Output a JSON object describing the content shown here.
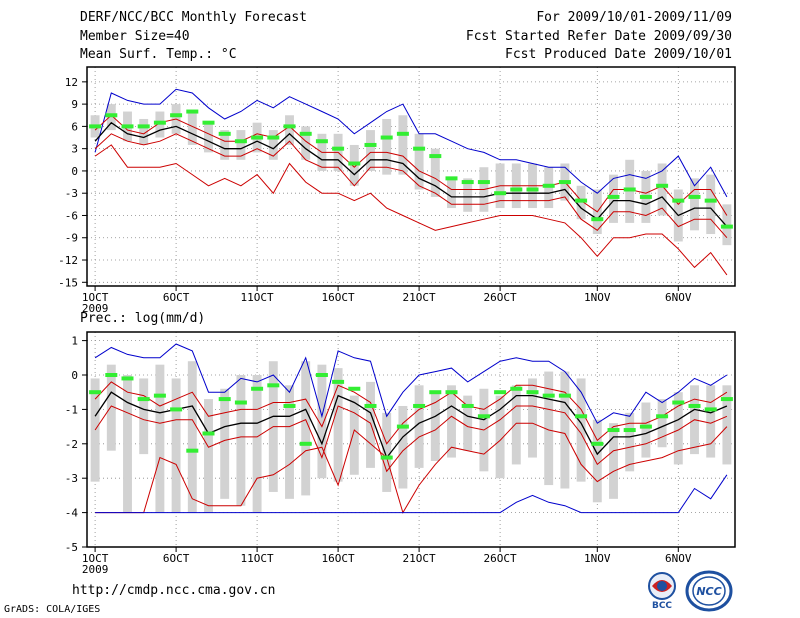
{
  "header": {
    "title": "DERF/NCC/BCC Monthly Forecast",
    "member_size": "Member Size=40",
    "variable": "Mean Surf. Temp.: °C",
    "period": "For 2009/10/01-2009/11/09",
    "fcst_started": "Fcst Started Refer Date 2009/09/30",
    "fcst_produced": "Fcst Produced Date 2009/10/01"
  },
  "footer": {
    "url": "http://cmdp.ncc.cma.gov.cn",
    "credit": "GrADS: COLA/IGES",
    "logo_left_text": "BCC",
    "logo_right_text": "NCC"
  },
  "colors": {
    "envelope": "#0000cc",
    "spread": "#cc0000",
    "mean": "#000000",
    "box": "#d2d2d2",
    "observed": "#33ee33"
  },
  "chart_data": [
    {
      "type": "line",
      "title": "Mean Surf. Temp.: °C",
      "x_ticks": [
        "1OCT",
        "6OCT",
        "11OCT",
        "16OCT",
        "21OCT",
        "26OCT",
        "1NOV",
        "6NOV"
      ],
      "x_tick_days": [
        1,
        6,
        11,
        16,
        21,
        26,
        32,
        37
      ],
      "x_sublabel": "2009",
      "x_range": [
        0.5,
        40.5
      ],
      "ylim": [
        -15.5,
        14
      ],
      "yticks": [
        12,
        9,
        6,
        3,
        0,
        -3,
        -6,
        -9,
        -12,
        -15
      ],
      "grid": true,
      "series": [
        {
          "name": "max",
          "values": [
            2.5,
            10.5,
            9.5,
            9,
            9,
            11,
            10.5,
            8.5,
            7,
            8,
            9.5,
            8.5,
            10,
            9,
            8,
            7,
            5,
            6.5,
            8,
            9,
            5,
            5,
            4,
            3,
            2.5,
            1.5,
            1.5,
            1,
            0.5,
            0.5,
            -1.5,
            -3,
            -1,
            -0.5,
            -1,
            0,
            2,
            -2,
            0.5,
            -3.5
          ]
        },
        {
          "name": "upper",
          "values": [
            5.5,
            7.5,
            5.5,
            5,
            6.5,
            7,
            6,
            5,
            4,
            4,
            5,
            4.5,
            6,
            4,
            2.5,
            2.5,
            0.5,
            2.5,
            2.5,
            2,
            0,
            -1,
            -2.5,
            -2.5,
            -2.5,
            -2,
            -2,
            -2,
            -2,
            -1.5,
            -4,
            -5.5,
            -2.5,
            -2.5,
            -3,
            -2,
            -4.5,
            -2.5,
            -2.5,
            -6
          ]
        },
        {
          "name": "mean",
          "values": [
            4,
            6.5,
            5,
            4.5,
            5.5,
            6,
            5,
            4,
            3,
            3,
            4,
            3,
            5,
            3,
            1.5,
            1.5,
            -0.5,
            1.5,
            1.5,
            1,
            -1,
            -2,
            -3.5,
            -3.5,
            -3.5,
            -3,
            -3,
            -3,
            -3,
            -2.5,
            -5,
            -6.5,
            -4,
            -4,
            -4.5,
            -3.5,
            -6,
            -5,
            -5,
            -7.5
          ]
        },
        {
          "name": "lower",
          "values": [
            3,
            5,
            4,
            3.5,
            4,
            5,
            4,
            3,
            2,
            2,
            3,
            2,
            4,
            1.5,
            0.5,
            0.5,
            -2,
            0.5,
            0.5,
            0,
            -2,
            -3,
            -4.5,
            -4.5,
            -4.5,
            -4,
            -4,
            -4,
            -4,
            -3.5,
            -6.5,
            -8,
            -5.5,
            -5.5,
            -6,
            -5,
            -7.5,
            -6.5,
            -6.5,
            -9
          ]
        },
        {
          "name": "min",
          "values": [
            2,
            3.5,
            0.5,
            0.5,
            0.5,
            1,
            -0.5,
            -2,
            -1,
            -2,
            -0.5,
            -3,
            1,
            -1.5,
            -3,
            -3,
            -4,
            -3,
            -5,
            -6,
            -7,
            -8,
            -7.5,
            -7,
            -6.5,
            -6,
            -6,
            -6,
            -6.5,
            -7,
            -9,
            -11.5,
            -9,
            -9,
            -8.5,
            -8.5,
            -10.5,
            -13,
            -11,
            -14
          ]
        }
      ],
      "boxes": [
        [
          4.5,
          7.5
        ],
        [
          5.5,
          9
        ],
        [
          4,
          8
        ],
        [
          3.5,
          7
        ],
        [
          4.5,
          8
        ],
        [
          5,
          9
        ],
        [
          3.5,
          8
        ],
        [
          2.5,
          6.5
        ],
        [
          1.5,
          5.5
        ],
        [
          1.5,
          5.5
        ],
        [
          2.5,
          6.5
        ],
        [
          1.5,
          5.5
        ],
        [
          3.5,
          7.5
        ],
        [
          1.5,
          6
        ],
        [
          0,
          5
        ],
        [
          0,
          5
        ],
        [
          -2,
          3.5
        ],
        [
          0,
          5.5
        ],
        [
          -0.5,
          7
        ],
        [
          -0.5,
          7.5
        ],
        [
          -2.5,
          5
        ],
        [
          -3.5,
          3
        ],
        [
          -5,
          -1
        ],
        [
          -5.5,
          -1
        ],
        [
          -5.5,
          0.5
        ],
        [
          -5,
          1
        ],
        [
          -5,
          1
        ],
        [
          -5,
          1
        ],
        [
          -5,
          0.5
        ],
        [
          -4,
          1
        ],
        [
          -6.5,
          -2
        ],
        [
          -8.5,
          -2.5
        ],
        [
          -7,
          -0.5
        ],
        [
          -7,
          1.5
        ],
        [
          -7,
          0
        ],
        [
          -6,
          1
        ],
        [
          -9.5,
          -2.5
        ],
        [
          -8,
          -1
        ],
        [
          -8.5,
          -0.5
        ],
        [
          -10,
          -4.5
        ]
      ],
      "observed": [
        6,
        7.5,
        6,
        6,
        6.5,
        7.5,
        8,
        6.5,
        5,
        4,
        4.5,
        4.5,
        6,
        5,
        4,
        3,
        1,
        3.5,
        4.5,
        5,
        3,
        2,
        -1,
        -1.5,
        -1.5,
        -3,
        -2.5,
        -2.5,
        -2,
        -1.5,
        -4,
        -6.5,
        -3.5,
        -2.5,
        -3.5,
        -2,
        -4,
        -3.5,
        -4,
        -7.5
      ]
    },
    {
      "type": "line",
      "title": "Prec.: log(mm/d)",
      "x_ticks": [
        "1OCT",
        "6OCT",
        "11OCT",
        "16OCT",
        "21OCT",
        "26OCT",
        "1NOV",
        "6NOV"
      ],
      "x_tick_days": [
        1,
        6,
        11,
        16,
        21,
        26,
        32,
        37
      ],
      "x_sublabel": "2009",
      "x_range": [
        0.5,
        40.5
      ],
      "ylim": [
        -5,
        1.25
      ],
      "yticks": [
        1,
        0,
        -1,
        -2,
        -3,
        -4,
        -5
      ],
      "grid": true,
      "series": [
        {
          "name": "max",
          "values": [
            0.5,
            0.8,
            0.6,
            0.5,
            0.5,
            0.9,
            0.7,
            -0.5,
            -0.5,
            -0.1,
            -0.2,
            0,
            -0.5,
            0.5,
            -1.2,
            0.7,
            0.5,
            0.4,
            -1.2,
            -0.5,
            0,
            0.1,
            0.2,
            -0.2,
            0.1,
            0.4,
            0.5,
            0.4,
            0.4,
            0.1,
            -0.5,
            -1.4,
            -1.1,
            -1.2,
            -0.5,
            -0.8,
            -0.5,
            -0.1,
            -0.3,
            0
          ]
        },
        {
          "name": "upper",
          "values": [
            -0.7,
            -0.2,
            -0.5,
            -0.6,
            -0.9,
            -0.7,
            -0.5,
            -1.2,
            -1.1,
            -1,
            -1,
            -0.8,
            -0.8,
            -0.7,
            -1.5,
            -0.3,
            -0.5,
            -0.8,
            -2,
            -1.4,
            -1,
            -0.8,
            -0.5,
            -0.9,
            -1,
            -0.7,
            -0.3,
            -0.3,
            -0.4,
            -0.5,
            -1,
            -1.9,
            -1.5,
            -1.4,
            -1.4,
            -1.2,
            -0.9,
            -0.7,
            -0.8,
            -0.5
          ]
        },
        {
          "name": "mean",
          "values": [
            -1.2,
            -0.5,
            -0.8,
            -1,
            -1.1,
            -1,
            -0.9,
            -1.7,
            -1.5,
            -1.4,
            -1.4,
            -1.2,
            -1.2,
            -1,
            -2,
            -0.6,
            -0.8,
            -1.1,
            -2.4,
            -1.8,
            -1.4,
            -1.2,
            -0.9,
            -1.2,
            -1.3,
            -1,
            -0.6,
            -0.6,
            -0.7,
            -0.8,
            -1.4,
            -2.3,
            -1.8,
            -1.8,
            -1.7,
            -1.5,
            -1.3,
            -1,
            -1.1,
            -0.9
          ]
        },
        {
          "name": "lower",
          "values": [
            -1.6,
            -0.9,
            -1.1,
            -1.3,
            -1.4,
            -1.3,
            -1.3,
            -2.1,
            -1.9,
            -1.8,
            -1.8,
            -1.5,
            -1.5,
            -1.3,
            -2.4,
            -0.9,
            -1.1,
            -1.4,
            -2.8,
            -2.2,
            -1.8,
            -1.6,
            -1.2,
            -1.5,
            -1.6,
            -1.3,
            -0.9,
            -0.9,
            -1,
            -1.1,
            -1.7,
            -2.6,
            -2.2,
            -2.1,
            -2,
            -1.8,
            -1.6,
            -1.3,
            -1.4,
            -1.2
          ]
        },
        {
          "name": "min",
          "values": [
            -4,
            -4,
            -4,
            -4,
            -2.4,
            -2.6,
            -3.6,
            -3.8,
            -3.8,
            -3.8,
            -3,
            -2.9,
            -2.6,
            -2.2,
            -2.1,
            -3.2,
            -1.6,
            -2,
            -2.4,
            -4,
            -3.2,
            -2.6,
            -2.1,
            -2.2,
            -2.3,
            -1.9,
            -1.4,
            -1.4,
            -1.6,
            -1.7,
            -2.6,
            -3.1,
            -2.8,
            -2.6,
            -2.5,
            -2.4,
            -2.2,
            -2.1,
            -2,
            -1.5
          ]
        },
        {
          "name": "floor",
          "values": [
            -4,
            -4,
            -4,
            -4,
            -4,
            -4,
            -4,
            -4,
            -4,
            -4,
            -4,
            -4,
            -4,
            -4,
            -4,
            -4,
            -4,
            -4,
            -4,
            -4,
            -4,
            -4,
            -4,
            -4,
            -4,
            -4,
            -3.7,
            -3.5,
            -3.7,
            -3.8,
            -4,
            -4,
            -4,
            -4,
            -4,
            -4,
            -4,
            -3.3,
            -3.6,
            -2.9
          ]
        }
      ],
      "boxes": [
        [
          -3.1,
          -0.1
        ],
        [
          -2.2,
          0.3
        ],
        [
          -4,
          0
        ],
        [
          -2.3,
          -0.1
        ],
        [
          -4,
          0.3
        ],
        [
          -4,
          -0.1
        ],
        [
          -4,
          0.4
        ],
        [
          -4,
          -0.7
        ],
        [
          -3.6,
          -0.4
        ],
        [
          -3.8,
          0
        ],
        [
          -4,
          0
        ],
        [
          -3.4,
          0.4
        ],
        [
          -3.6,
          -0.3
        ],
        [
          -3.5,
          0.4
        ],
        [
          -3,
          0.3
        ],
        [
          -3.1,
          0.2
        ],
        [
          -2.9,
          -0.6
        ],
        [
          -2.7,
          -0.2
        ],
        [
          -3.4,
          -1.1
        ],
        [
          -3.3,
          -0.9
        ],
        [
          -2.7,
          -0.3
        ],
        [
          -2.5,
          -0.5
        ],
        [
          -2.4,
          -0.3
        ],
        [
          -2.2,
          -0.6
        ],
        [
          -2.8,
          -0.4
        ],
        [
          -3,
          -0.6
        ],
        [
          -2.6,
          -0.3
        ],
        [
          -2.4,
          -0.1
        ],
        [
          -3.2,
          0.1
        ],
        [
          -3.3,
          0.1
        ],
        [
          -3.1,
          -0.1
        ],
        [
          -3.7,
          -1.3
        ],
        [
          -3.6,
          -1.4
        ],
        [
          -2.8,
          -1.1
        ],
        [
          -2.4,
          -0.8
        ],
        [
          -2.1,
          -0.7
        ],
        [
          -2.6,
          -0.5
        ],
        [
          -2.3,
          -0.3
        ],
        [
          -2.4,
          -0.3
        ],
        [
          -2.6,
          -0.3
        ]
      ],
      "observed": [
        -0.5,
        0,
        -0.1,
        -0.7,
        -0.6,
        -1,
        -2.2,
        -1.7,
        -0.7,
        -0.8,
        -0.4,
        -0.3,
        -0.9,
        -2,
        0,
        -0.2,
        -0.4,
        -0.9,
        -2.4,
        -1.5,
        -0.9,
        -0.5,
        -0.5,
        -0.9,
        -1.2,
        -0.5,
        -0.4,
        -0.5,
        -0.6,
        -0.6,
        -1.2,
        -2,
        -1.6,
        -1.6,
        -1.5,
        -1.2,
        -0.8,
        -0.9,
        -1,
        -0.7
      ]
    }
  ]
}
